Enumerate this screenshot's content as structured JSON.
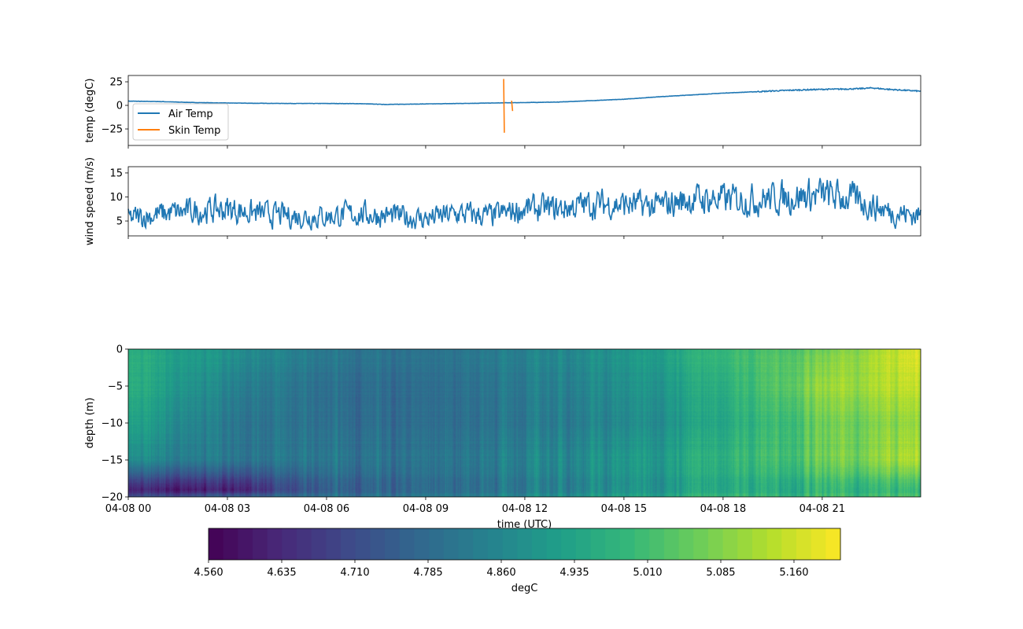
{
  "chart_data": [
    {
      "type": "line",
      "ylabel": "temp (degC)",
      "ylim": [
        -42.5,
        31.7
      ],
      "yticks": [
        25,
        0,
        -25
      ],
      "ytick_labels": [
        "25",
        "0",
        "−25"
      ],
      "legend": {
        "placement": "lower-left",
        "entries": [
          "Air Temp",
          "Skin Temp"
        ]
      },
      "series": [
        {
          "name": "Air Temp",
          "color": "#1f77b4",
          "x_hours": [
            0,
            1,
            2,
            3,
            4,
            5,
            6,
            7,
            7.8,
            9,
            10,
            11,
            12,
            13,
            14,
            15,
            16,
            17,
            18,
            19,
            20,
            21,
            22,
            22.5,
            23,
            24
          ],
          "values": [
            4.5,
            4,
            3,
            2.5,
            2.2,
            2,
            2,
            1.8,
            1,
            1.5,
            2,
            2.5,
            3,
            3.5,
            5,
            6.5,
            9,
            11,
            13,
            14.5,
            16,
            17,
            17.5,
            18.5,
            17,
            15
          ]
        },
        {
          "name": "Skin Temp",
          "color": "#ff7f0e",
          "segments": [
            {
              "x_hours": [
                11.36,
                11.38
              ],
              "values": [
                28,
                -29
              ]
            },
            {
              "x_hours": [
                11.6,
                11.63
              ],
              "values": [
                5,
                -6
              ]
            }
          ]
        }
      ]
    },
    {
      "type": "line",
      "ylabel": "wind speed (m/s)",
      "ylim": [
        1.9,
        16.3
      ],
      "yticks": [
        15,
        10,
        5
      ],
      "ytick_labels": [
        "15",
        "10",
        "5"
      ],
      "series": [
        {
          "name": "wind speed",
          "color": "#1f77b4",
          "x_hours": [
            0,
            1,
            2,
            3,
            4,
            5,
            6,
            7,
            8,
            9,
            10,
            11,
            12,
            13,
            14,
            15,
            16,
            17,
            18,
            19,
            20,
            21,
            22,
            23,
            24
          ],
          "values": [
            5.5,
            6.5,
            7,
            7.5,
            6.5,
            6,
            6,
            6.5,
            6,
            5.5,
            6.5,
            6,
            7.5,
            7.5,
            8.5,
            8.5,
            8,
            9.5,
            9.5,
            9.5,
            10,
            10.5,
            9.5,
            7,
            6
          ]
        }
      ]
    },
    {
      "type": "heatmap",
      "ylabel": "depth (m)",
      "xlabel": "time (UTC)",
      "ylim": [
        -20,
        0
      ],
      "yticks": [
        0,
        -5,
        -10,
        -15,
        -20
      ],
      "ytick_labels": [
        "0",
        "−5",
        "−10",
        "−15",
        "−20"
      ],
      "xlim_hours": [
        0,
        23.98
      ],
      "xticks_hours": [
        0,
        3,
        6,
        9,
        12,
        15,
        18,
        21
      ],
      "xtick_labels": [
        "04-08 00",
        "04-08 03",
        "04-08 06",
        "04-08 09",
        "04-08 12",
        "04-08 15",
        "04-08 18",
        "04-08 21"
      ],
      "x_hours": [
        0,
        3,
        6,
        9,
        12,
        15,
        18,
        21,
        24
      ],
      "depths": [
        0,
        -5,
        -10,
        -15,
        -19,
        -20
      ],
      "values": [
        [
          4.96,
          4.96,
          4.92,
          4.86,
          4.6,
          4.7
        ],
        [
          4.9,
          4.86,
          4.83,
          4.83,
          4.62,
          4.78
        ],
        [
          4.82,
          4.79,
          4.79,
          4.81,
          4.74,
          4.8
        ],
        [
          4.81,
          4.79,
          4.79,
          4.81,
          4.78,
          4.83
        ],
        [
          4.85,
          4.83,
          4.82,
          4.85,
          4.82,
          4.87
        ],
        [
          4.9,
          4.88,
          4.86,
          4.9,
          4.88,
          4.93
        ],
        [
          5.0,
          4.97,
          4.95,
          4.98,
          4.95,
          5.0
        ],
        [
          5.06,
          5.1,
          5.05,
          5.05,
          4.97,
          5.0
        ],
        [
          5.18,
          5.15,
          5.1,
          5.13,
          4.98,
          5.02
        ]
      ],
      "colormap": "viridis",
      "colorbar": {
        "label": "degC",
        "range": [
          4.56,
          5.2076
        ],
        "levels": 43,
        "ticks": [
          4.56,
          4.635,
          4.71,
          4.785,
          4.86,
          4.935,
          5.01,
          5.085,
          5.16
        ],
        "tick_labels": [
          "4.560",
          "4.635",
          "4.710",
          "4.785",
          "4.860",
          "4.935",
          "5.010",
          "5.085",
          "5.160"
        ]
      }
    }
  ]
}
